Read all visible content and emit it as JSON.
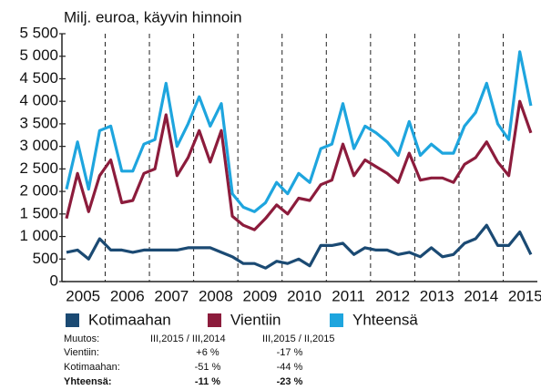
{
  "chart_data": {
    "type": "line",
    "y_label": "Milj. euroa, käyvin hinnoin",
    "categories": [
      "2005",
      null,
      null,
      null,
      "2006",
      null,
      null,
      null,
      "2007",
      null,
      null,
      null,
      "2008",
      null,
      null,
      null,
      "2009",
      null,
      null,
      null,
      "2010",
      null,
      null,
      null,
      "2011",
      null,
      null,
      null,
      "2012",
      null,
      null,
      null,
      "2013",
      null,
      null,
      null,
      "2014",
      null,
      null,
      null,
      "2015",
      null,
      null
    ],
    "series": [
      {
        "name": "Kotimaahan",
        "color": "#1b4a73",
        "values": [
          650,
          700,
          500,
          950,
          700,
          700,
          650,
          700,
          700,
          700,
          700,
          750,
          750,
          750,
          650,
          550,
          400,
          400,
          300,
          450,
          400,
          500,
          350,
          800,
          800,
          850,
          600,
          750,
          700,
          700,
          600,
          650,
          550,
          750,
          550,
          600,
          850,
          950,
          1250,
          800,
          800,
          1100,
          600
        ]
      },
      {
        "name": "Vientiin",
        "color": "#8c1c3c",
        "values": [
          1400,
          2400,
          1550,
          2350,
          2700,
          1750,
          1800,
          2400,
          2500,
          3700,
          2350,
          2750,
          3350,
          2650,
          3350,
          1450,
          1250,
          1150,
          1400,
          1700,
          1500,
          1850,
          1800,
          2150,
          2250,
          3050,
          2350,
          2700,
          2550,
          2400,
          2200,
          2850,
          2250,
          2300,
          2300,
          2200,
          2600,
          2750,
          3100,
          2650,
          2350,
          4000,
          3300
        ]
      },
      {
        "name": "Yhteensä",
        "color": "#1ea5de",
        "values": [
          2050,
          3100,
          2050,
          3350,
          3450,
          2450,
          2450,
          3050,
          3150,
          4400,
          3000,
          3500,
          4100,
          3450,
          3950,
          1950,
          1650,
          1550,
          1750,
          2200,
          1950,
          2400,
          2200,
          2950,
          3050,
          3950,
          2950,
          3450,
          3300,
          3100,
          2800,
          3550,
          2800,
          3050,
          2850,
          2850,
          3450,
          3750,
          4400,
          3500,
          3150,
          5100,
          3900
        ]
      }
    ],
    "ylim": [
      0,
      5500
    ],
    "yticks": [
      0,
      500,
      {
        "value": 1000,
        "label": "1 000"
      },
      {
        "value": 1500,
        "label": "1 500"
      },
      {
        "value": 2000,
        "label": "2 000"
      },
      {
        "value": 2500,
        "label": "2 500"
      },
      {
        "value": 3000,
        "label": "3 000"
      },
      {
        "value": 3500,
        "label": "3 500"
      },
      {
        "value": 4000,
        "label": "4 000"
      },
      {
        "value": 4500,
        "label": "4 500"
      },
      {
        "value": 5000,
        "label": "5 000"
      },
      {
        "value": 5500,
        "label": "5 500"
      }
    ],
    "grid": false
  },
  "table": {
    "header": [
      "Muutos:",
      "III,2015 / III,2014",
      "III,2015 / II,2015"
    ],
    "rows": [
      [
        "Vientiin:",
        "+6 %",
        "-17 %"
      ],
      [
        "Kotimaahan:",
        "-51 %",
        "-44 %"
      ],
      [
        "Yhteensä:",
        "-11 %",
        "-23 %"
      ]
    ]
  }
}
